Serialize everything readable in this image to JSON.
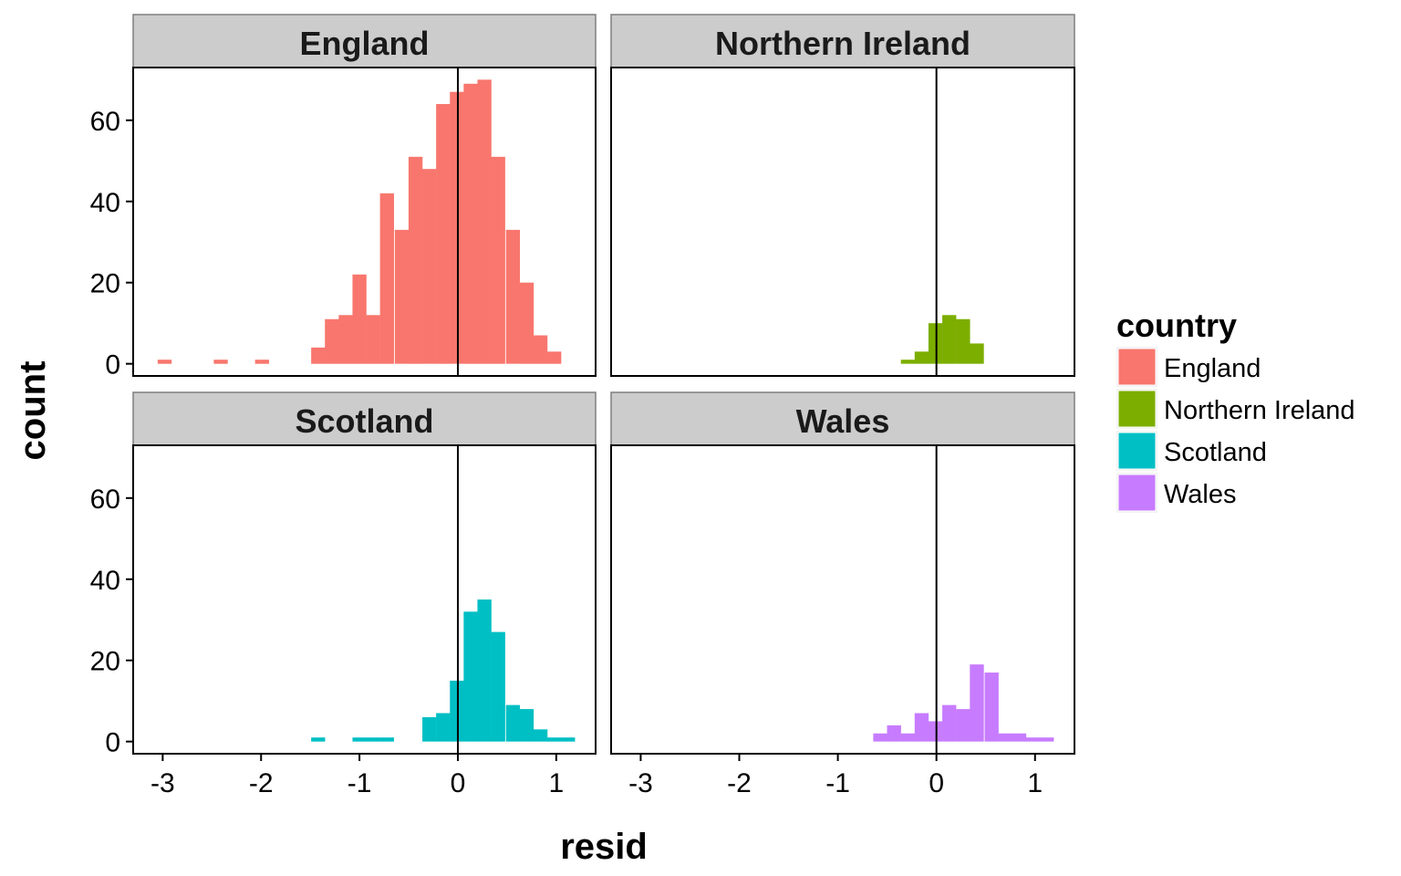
{
  "chart_data": {
    "type": "bar",
    "subtype": "faceted-histogram",
    "xlabel": "resid",
    "ylabel": "count",
    "xlim": [
      -3.3,
      1.4
    ],
    "ylim": [
      -3,
      73
    ],
    "x_ticks": [
      "-3",
      "-2",
      "-1",
      "0",
      "1"
    ],
    "x_tick_values": [
      -3,
      -2,
      -1,
      0,
      1
    ],
    "y_ticks": [
      "0",
      "20",
      "40",
      "60"
    ],
    "y_tick_values": [
      0,
      20,
      40,
      60
    ],
    "bin_width": 0.142,
    "vline_x": 0,
    "grid": false,
    "facet_layout": "2x2",
    "legend": {
      "title": "country",
      "position": "right",
      "items": [
        {
          "label": "England",
          "color": "#F8766D"
        },
        {
          "label": "Northern Ireland",
          "color": "#7CAE00"
        },
        {
          "label": "Scotland",
          "color": "#00BFC4"
        },
        {
          "label": "Wales",
          "color": "#C77CFF"
        }
      ]
    },
    "series": [
      {
        "name": "England",
        "color": "#F8766D",
        "bins": [
          {
            "x": -2.98,
            "count": 1
          },
          {
            "x": -2.41,
            "count": 1
          },
          {
            "x": -1.99,
            "count": 1
          },
          {
            "x": -1.42,
            "count": 4
          },
          {
            "x": -1.28,
            "count": 11
          },
          {
            "x": -1.14,
            "count": 12
          },
          {
            "x": -1.0,
            "count": 22
          },
          {
            "x": -0.86,
            "count": 12
          },
          {
            "x": -0.72,
            "count": 42
          },
          {
            "x": -0.57,
            "count": 33
          },
          {
            "x": -0.43,
            "count": 51
          },
          {
            "x": -0.29,
            "count": 48
          },
          {
            "x": -0.15,
            "count": 64
          },
          {
            "x": -0.01,
            "count": 67
          },
          {
            "x": 0.13,
            "count": 69
          },
          {
            "x": 0.27,
            "count": 70
          },
          {
            "x": 0.41,
            "count": 51
          },
          {
            "x": 0.56,
            "count": 33
          },
          {
            "x": 0.7,
            "count": 20
          },
          {
            "x": 0.84,
            "count": 7
          },
          {
            "x": 0.98,
            "count": 3
          }
        ]
      },
      {
        "name": "Northern Ireland",
        "color": "#7CAE00",
        "bins": [
          {
            "x": -0.29,
            "count": 1
          },
          {
            "x": -0.15,
            "count": 3
          },
          {
            "x": -0.01,
            "count": 10
          },
          {
            "x": 0.13,
            "count": 12
          },
          {
            "x": 0.27,
            "count": 11
          },
          {
            "x": 0.41,
            "count": 5
          }
        ]
      },
      {
        "name": "Scotland",
        "color": "#00BFC4",
        "bins": [
          {
            "x": -1.42,
            "count": 1
          },
          {
            "x": -1.0,
            "count": 1
          },
          {
            "x": -0.86,
            "count": 1
          },
          {
            "x": -0.72,
            "count": 1
          },
          {
            "x": -0.29,
            "count": 6
          },
          {
            "x": -0.15,
            "count": 7
          },
          {
            "x": -0.01,
            "count": 15
          },
          {
            "x": 0.13,
            "count": 32
          },
          {
            "x": 0.27,
            "count": 35
          },
          {
            "x": 0.41,
            "count": 27
          },
          {
            "x": 0.56,
            "count": 9
          },
          {
            "x": 0.7,
            "count": 8
          },
          {
            "x": 0.84,
            "count": 3
          },
          {
            "x": 0.98,
            "count": 1
          },
          {
            "x": 1.12,
            "count": 1
          }
        ]
      },
      {
        "name": "Wales",
        "color": "#C77CFF",
        "bins": [
          {
            "x": -0.57,
            "count": 2
          },
          {
            "x": -0.43,
            "count": 4
          },
          {
            "x": -0.29,
            "count": 2
          },
          {
            "x": -0.15,
            "count": 7
          },
          {
            "x": -0.01,
            "count": 5
          },
          {
            "x": 0.13,
            "count": 9
          },
          {
            "x": 0.27,
            "count": 8
          },
          {
            "x": 0.41,
            "count": 19
          },
          {
            "x": 0.56,
            "count": 17
          },
          {
            "x": 0.7,
            "count": 2
          },
          {
            "x": 0.84,
            "count": 2
          },
          {
            "x": 0.98,
            "count": 1
          },
          {
            "x": 1.12,
            "count": 1
          }
        ]
      }
    ],
    "panels": [
      {
        "title": "England",
        "series": 0
      },
      {
        "title": "Northern Ireland",
        "series": 1
      },
      {
        "title": "Scotland",
        "series": 2
      },
      {
        "title": "Wales",
        "series": 3
      }
    ]
  }
}
